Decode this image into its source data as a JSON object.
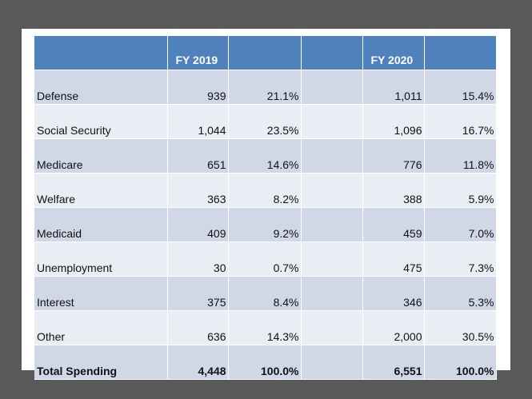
{
  "table": {
    "header": [
      "",
      "FY 2019",
      "",
      "",
      "FY 2020",
      ""
    ],
    "rows": [
      {
        "category": "Defense",
        "fy2019": "939",
        "fy2019_pct": "21.1%",
        "fy2020": "1,011",
        "fy2020_pct": "15.4%"
      },
      {
        "category": "Social Security",
        "fy2019": "1,044",
        "fy2019_pct": "23.5%",
        "fy2020": "1,096",
        "fy2020_pct": "16.7%"
      },
      {
        "category": "Medicare",
        "fy2019": "651",
        "fy2019_pct": "14.6%",
        "fy2020": "776",
        "fy2020_pct": "11.8%"
      },
      {
        "category": "Welfare",
        "fy2019": "363",
        "fy2019_pct": "8.2%",
        "fy2020": "388",
        "fy2020_pct": "5.9%"
      },
      {
        "category": "Medicaid",
        "fy2019": "409",
        "fy2019_pct": "9.2%",
        "fy2020": "459",
        "fy2020_pct": "7.0%"
      },
      {
        "category": "Unemployment",
        "fy2019": "30",
        "fy2019_pct": "0.7%",
        "fy2020": "475",
        "fy2020_pct": "7.3%"
      },
      {
        "category": "Interest",
        "fy2019": "375",
        "fy2019_pct": "8.4%",
        "fy2020": "346",
        "fy2020_pct": "5.3%"
      },
      {
        "category": "Other",
        "fy2019": "636",
        "fy2019_pct": "14.3%",
        "fy2020": "2,000",
        "fy2020_pct": "30.5%"
      }
    ],
    "total": {
      "category": "Total Spending",
      "fy2019": "4,448",
      "fy2019_pct": "100.0%",
      "fy2020": "6,551",
      "fy2020_pct": "100.0%"
    }
  },
  "colors": {
    "header": "#4f81bd",
    "band_dark": "#d0d8e8",
    "band_light": "#e9edf4",
    "frame": "#595959"
  }
}
